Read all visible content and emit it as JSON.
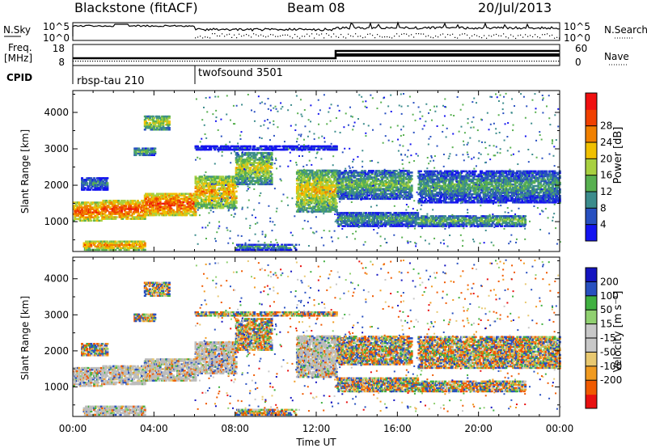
{
  "header": {
    "station": "Blackstone (fitACF)",
    "beam": "Beam 08",
    "date": "20/Jul/2013"
  },
  "panels": {
    "nsky_label": "N.Sky",
    "nsearch_label": "N.Search",
    "freq_label_line1": "Freq.",
    "freq_label_line2": "[MHz]",
    "nave_label": "Nave",
    "cpid_label": "CPID",
    "nsky_ticks": [
      "10^5",
      "10^0"
    ],
    "nsearch_ticks": [
      "10^5",
      "10^0"
    ],
    "freq_ticks": [
      "18",
      "8"
    ],
    "nave_ticks": [
      "60",
      "0"
    ],
    "cpid_segments": [
      {
        "start_hour": 0,
        "label": "rbsp-tau 210"
      },
      {
        "start_hour": 6,
        "label": "twofsound 3501"
      }
    ]
  },
  "colors": {
    "power_scale": [
      "#1414f0",
      "#2850c0",
      "#3c8c8c",
      "#58b050",
      "#a8d040",
      "#f0c000",
      "#f08000",
      "#f04000",
      "#f01010"
    ],
    "velocity_scale": [
      "#e81010",
      "#f05a00",
      "#f09a20",
      "#e8c870",
      "#c8c8c8",
      "#c8c8c8",
      "#90d070",
      "#40b040",
      "#2850c0",
      "#1414c0"
    ],
    "ground_scatter": "#bcbcbc"
  },
  "chart_data": [
    {
      "type": "heatmap",
      "name": "power-panel",
      "ylabel": "Slant Range [km]",
      "xlim": [
        0,
        24
      ],
      "ylim": [
        180,
        4600
      ],
      "yticks": [
        "1000",
        "2000",
        "3000",
        "4000"
      ],
      "colorbar_label": "Power [dB]",
      "colorbar_range": [
        0,
        32
      ],
      "colorbar_ticks": [
        "4",
        "8",
        "12",
        "16",
        "20",
        "24",
        "28"
      ],
      "echo_bands": [
        {
          "t0": 0.0,
          "t1": 1.4,
          "r0": 1000,
          "r1": 1500,
          "db": 26
        },
        {
          "t0": 1.4,
          "t1": 3.5,
          "r0": 1050,
          "r1": 1550,
          "db": 27
        },
        {
          "t0": 3.5,
          "t1": 6.0,
          "r0": 1150,
          "r1": 1750,
          "db": 27
        },
        {
          "t0": 6.0,
          "t1": 8.0,
          "r0": 1350,
          "r1": 2250,
          "db": 22
        },
        {
          "t0": 8.0,
          "t1": 9.8,
          "r0": 2000,
          "r1": 2900,
          "db": 18
        },
        {
          "t0": 11.0,
          "t1": 13.0,
          "r0": 1250,
          "r1": 2400,
          "db": 20
        },
        {
          "t0": 13.0,
          "t1": 16.7,
          "r0": 1600,
          "r1": 2400,
          "db": 14
        },
        {
          "t0": 13.0,
          "t1": 17.0,
          "r0": 850,
          "r1": 1250,
          "db": 12
        },
        {
          "t0": 17.0,
          "t1": 24.0,
          "r0": 1500,
          "r1": 2400,
          "db": 12
        },
        {
          "t0": 17.0,
          "t1": 22.3,
          "r0": 850,
          "r1": 1150,
          "db": 14
        },
        {
          "t0": 3.0,
          "t1": 4.0,
          "r0": 2800,
          "r1": 3000,
          "db": 14
        },
        {
          "t0": 3.5,
          "t1": 4.7,
          "r0": 3500,
          "r1": 3900,
          "db": 18
        },
        {
          "t0": 0.4,
          "t1": 1.7,
          "r0": 1850,
          "r1": 2200,
          "db": 10
        },
        {
          "t0": 0.5,
          "t1": 3.5,
          "r0": 200,
          "r1": 450,
          "db": 24
        },
        {
          "t0": 6.0,
          "t1": 13.0,
          "r0": 2950,
          "r1": 3050,
          "db": 5
        },
        {
          "t0": 8.0,
          "t1": 11.0,
          "r0": 200,
          "r1": 350,
          "db": 12
        }
      ]
    },
    {
      "type": "heatmap",
      "name": "velocity-panel",
      "ylabel": "Slant Range [km]",
      "xlabel": "Time UT",
      "xlim": [
        0,
        24
      ],
      "ylim": [
        180,
        4600
      ],
      "xticks": [
        "00:00",
        "04:00",
        "08:00",
        "12:00",
        "16:00",
        "20:00",
        "00:00"
      ],
      "yticks": [
        "1000",
        "2000",
        "3000",
        "4000"
      ],
      "colorbar_label": "Velocity [m s⁻¹]",
      "colorbar_range": [
        -250,
        250
      ],
      "colorbar_ticks": [
        "200",
        "100",
        "50",
        "15",
        "-15",
        "-50",
        "-100",
        "-200"
      ]
    }
  ]
}
